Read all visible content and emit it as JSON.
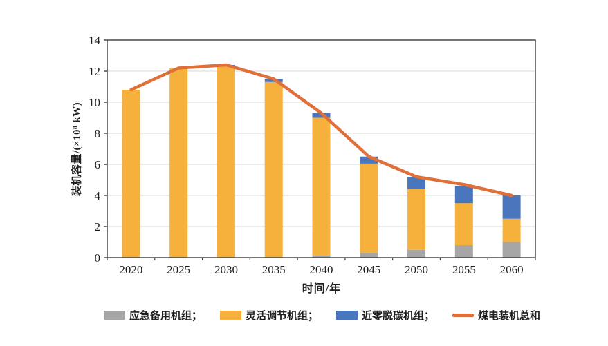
{
  "chart_data": {
    "type": "bar",
    "stacked": true,
    "overlay": "line",
    "title": "",
    "xlabel": "时间/年",
    "ylabel": "装机容量/(×10⁸ kW)",
    "categories": [
      "2020",
      "2025",
      "2030",
      "2035",
      "2040",
      "2045",
      "2050",
      "2055",
      "2060"
    ],
    "series": [
      {
        "name": "应急备用机组",
        "color": "#A6A6A6",
        "values": [
          0,
          0,
          0,
          0,
          0.15,
          0.3,
          0.5,
          0.8,
          1.0
        ]
      },
      {
        "name": "灵活调节机组",
        "color": "#F6B13C",
        "values": [
          10.8,
          12.2,
          12.3,
          11.3,
          8.85,
          5.75,
          3.9,
          2.7,
          1.5
        ]
      },
      {
        "name": "近零脱碳机组",
        "color": "#4A76BE",
        "values": [
          0,
          0,
          0.1,
          0.2,
          0.3,
          0.45,
          0.8,
          1.1,
          1.5
        ]
      }
    ],
    "line_series": {
      "name": "煤电装机总和",
      "color": "#E0703A",
      "values": [
        10.8,
        12.2,
        12.4,
        11.5,
        9.3,
        6.5,
        5.2,
        4.7,
        4.0
      ]
    },
    "ylim": [
      0,
      14
    ],
    "ytick_step": 2,
    "yticks": [
      "0",
      "2",
      "4",
      "6",
      "8",
      "10",
      "12",
      "14"
    ],
    "grid": true,
    "gridline_color": "#D9D9D9",
    "axis_color": "#3B3B3B",
    "legend_position": "bottom",
    "legend": [
      {
        "label": "应急备用机组；",
        "swatch": "rect",
        "color": "#A6A6A6"
      },
      {
        "label": "灵活调节机组；",
        "swatch": "rect",
        "color": "#F6B13C"
      },
      {
        "label": "近零脱碳机组；",
        "swatch": "rect",
        "color": "#4A76BE"
      },
      {
        "label": "煤电装机总和",
        "swatch": "line",
        "color": "#E0703A"
      }
    ]
  }
}
